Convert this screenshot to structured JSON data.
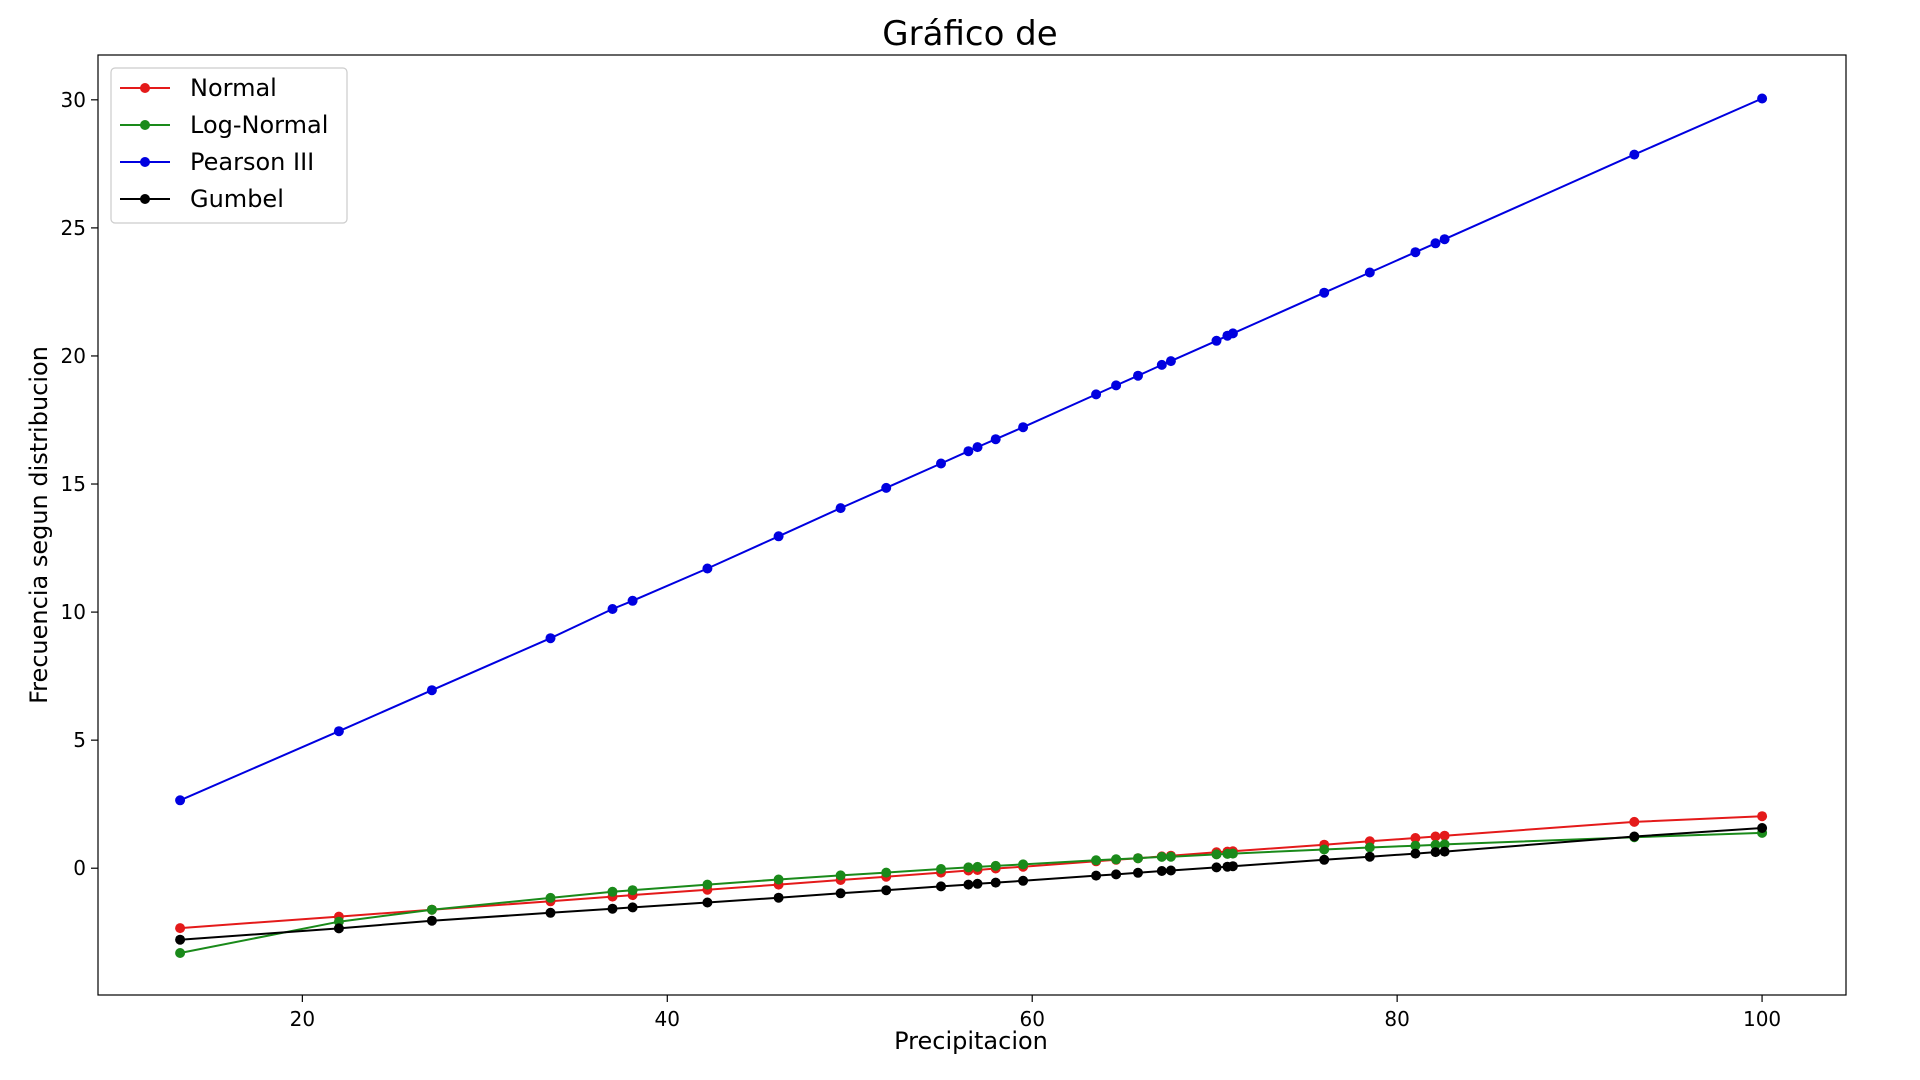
{
  "chart_data": {
    "type": "line",
    "title": "Gráfico de",
    "xlabel": "Precipitacion",
    "ylabel": "Frecuencia segun distribucion",
    "xlim": [
      8.8,
      104.6
    ],
    "ylim": [
      -4.95,
      31.75
    ],
    "xticks": [
      20,
      40,
      60,
      80,
      100
    ],
    "xtick_labels": [
      "20",
      "40",
      "60",
      "80",
      "100"
    ],
    "yticks": [
      0,
      5,
      10,
      15,
      20,
      25,
      30
    ],
    "ytick_labels": [
      "0",
      "5",
      "10",
      "15",
      "20",
      "25",
      "30"
    ],
    "grid": false,
    "legend_position": "upper-left",
    "x": [
      13.3,
      22.0,
      27.1,
      33.6,
      37.0,
      38.1,
      42.2,
      46.1,
      49.5,
      52.0,
      55.0,
      56.5,
      57.0,
      58.0,
      59.5,
      63.5,
      64.6,
      65.8,
      67.1,
      67.6,
      70.1,
      70.7,
      71.0,
      76.0,
      78.5,
      81.0,
      82.1,
      82.6,
      93.0,
      100.0
    ],
    "series": [
      {
        "name": "Normal",
        "color": "#e41a1a",
        "values": [
          -2.34,
          -1.89,
          -1.62,
          -1.29,
          -1.11,
          -1.05,
          -0.84,
          -0.64,
          -0.46,
          -0.33,
          -0.17,
          -0.09,
          -0.07,
          -0.01,
          0.06,
          0.27,
          0.33,
          0.39,
          0.46,
          0.49,
          0.62,
          0.65,
          0.66,
          0.92,
          1.05,
          1.18,
          1.24,
          1.27,
          1.81,
          2.03
        ]
      },
      {
        "name": "Log-Normal",
        "color": "#1a8a1a",
        "values": [
          -3.31,
          -2.09,
          -1.62,
          -1.16,
          -0.92,
          -0.86,
          -0.64,
          -0.44,
          -0.28,
          -0.17,
          -0.03,
          0.03,
          0.05,
          0.09,
          0.15,
          0.31,
          0.35,
          0.39,
          0.44,
          0.45,
          0.54,
          0.56,
          0.57,
          0.73,
          0.81,
          0.88,
          0.91,
          0.93,
          1.21,
          1.38
        ]
      },
      {
        "name": "Pearson III",
        "color": "#0000e0",
        "values": [
          2.65,
          5.35,
          6.95,
          8.98,
          10.12,
          10.44,
          11.7,
          12.96,
          14.06,
          14.85,
          15.8,
          16.28,
          16.44,
          16.75,
          17.22,
          18.5,
          18.85,
          19.23,
          19.65,
          19.8,
          20.59,
          20.79,
          20.88,
          22.47,
          23.26,
          24.05,
          24.4,
          24.56,
          27.86,
          30.05
        ]
      },
      {
        "name": "Gumbel",
        "color": "#000000",
        "values": [
          -2.79,
          -2.35,
          -2.05,
          -1.74,
          -1.58,
          -1.53,
          -1.34,
          -1.15,
          -0.98,
          -0.86,
          -0.71,
          -0.64,
          -0.61,
          -0.56,
          -0.49,
          -0.29,
          -0.24,
          -0.18,
          -0.11,
          -0.09,
          0.03,
          0.06,
          0.08,
          0.33,
          0.45,
          0.57,
          0.63,
          0.65,
          1.24,
          1.57
        ]
      }
    ]
  }
}
